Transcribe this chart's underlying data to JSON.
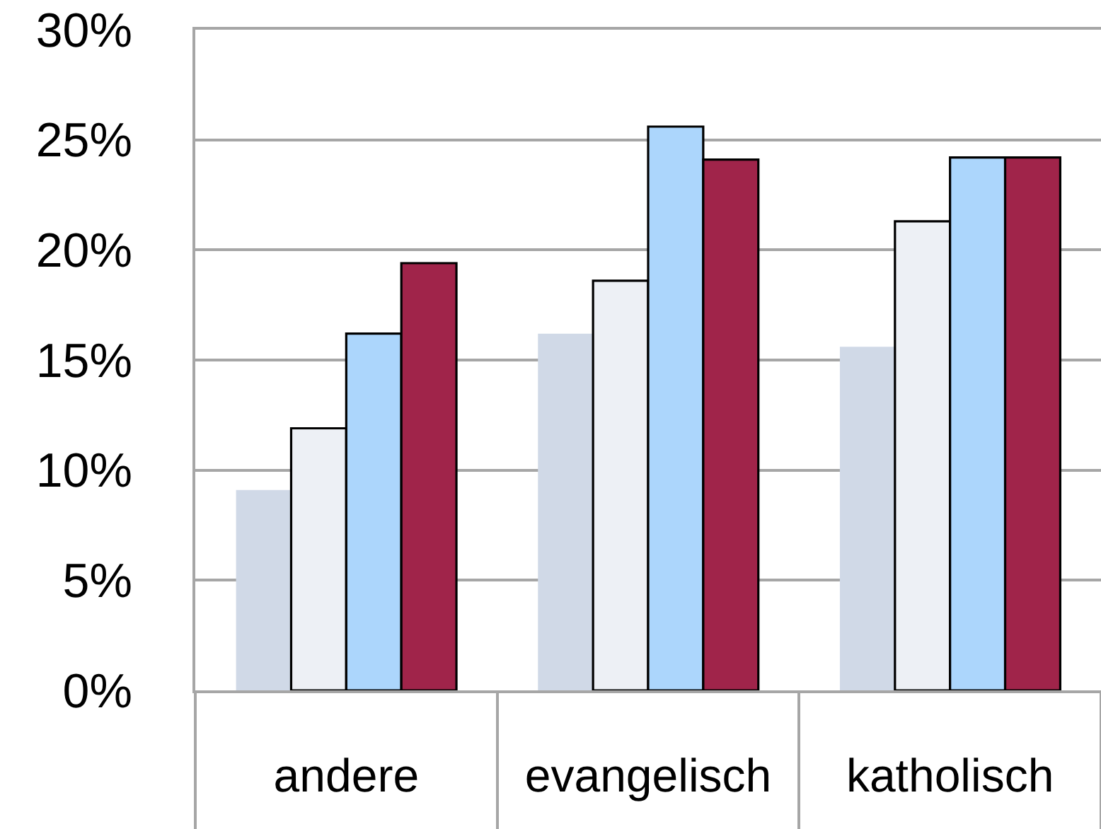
{
  "chart_data": {
    "type": "bar",
    "categories": [
      "andere",
      "evangelisch",
      "katholisch"
    ],
    "series": [
      {
        "color": "#d0d9e7",
        "values": [
          9.1,
          16.2,
          15.6
        ]
      },
      {
        "color": "#edf0f5",
        "values": [
          11.9,
          18.6,
          21.3
        ]
      },
      {
        "color": "#acd6fc",
        "values": [
          16.2,
          25.6,
          24.2
        ]
      },
      {
        "color": "#a0244a",
        "values": [
          19.4,
          24.1,
          24.2
        ]
      }
    ],
    "ylim": [
      0,
      30
    ],
    "yticks": [
      {
        "value": 0,
        "label": "0%"
      },
      {
        "value": 5,
        "label": "5%"
      },
      {
        "value": 10,
        "label": "10%"
      },
      {
        "value": 15,
        "label": "15%"
      },
      {
        "value": 20,
        "label": "20%"
      },
      {
        "value": 25,
        "label": "25%"
      },
      {
        "value": 30,
        "label": "30%"
      }
    ],
    "grid": "y"
  }
}
